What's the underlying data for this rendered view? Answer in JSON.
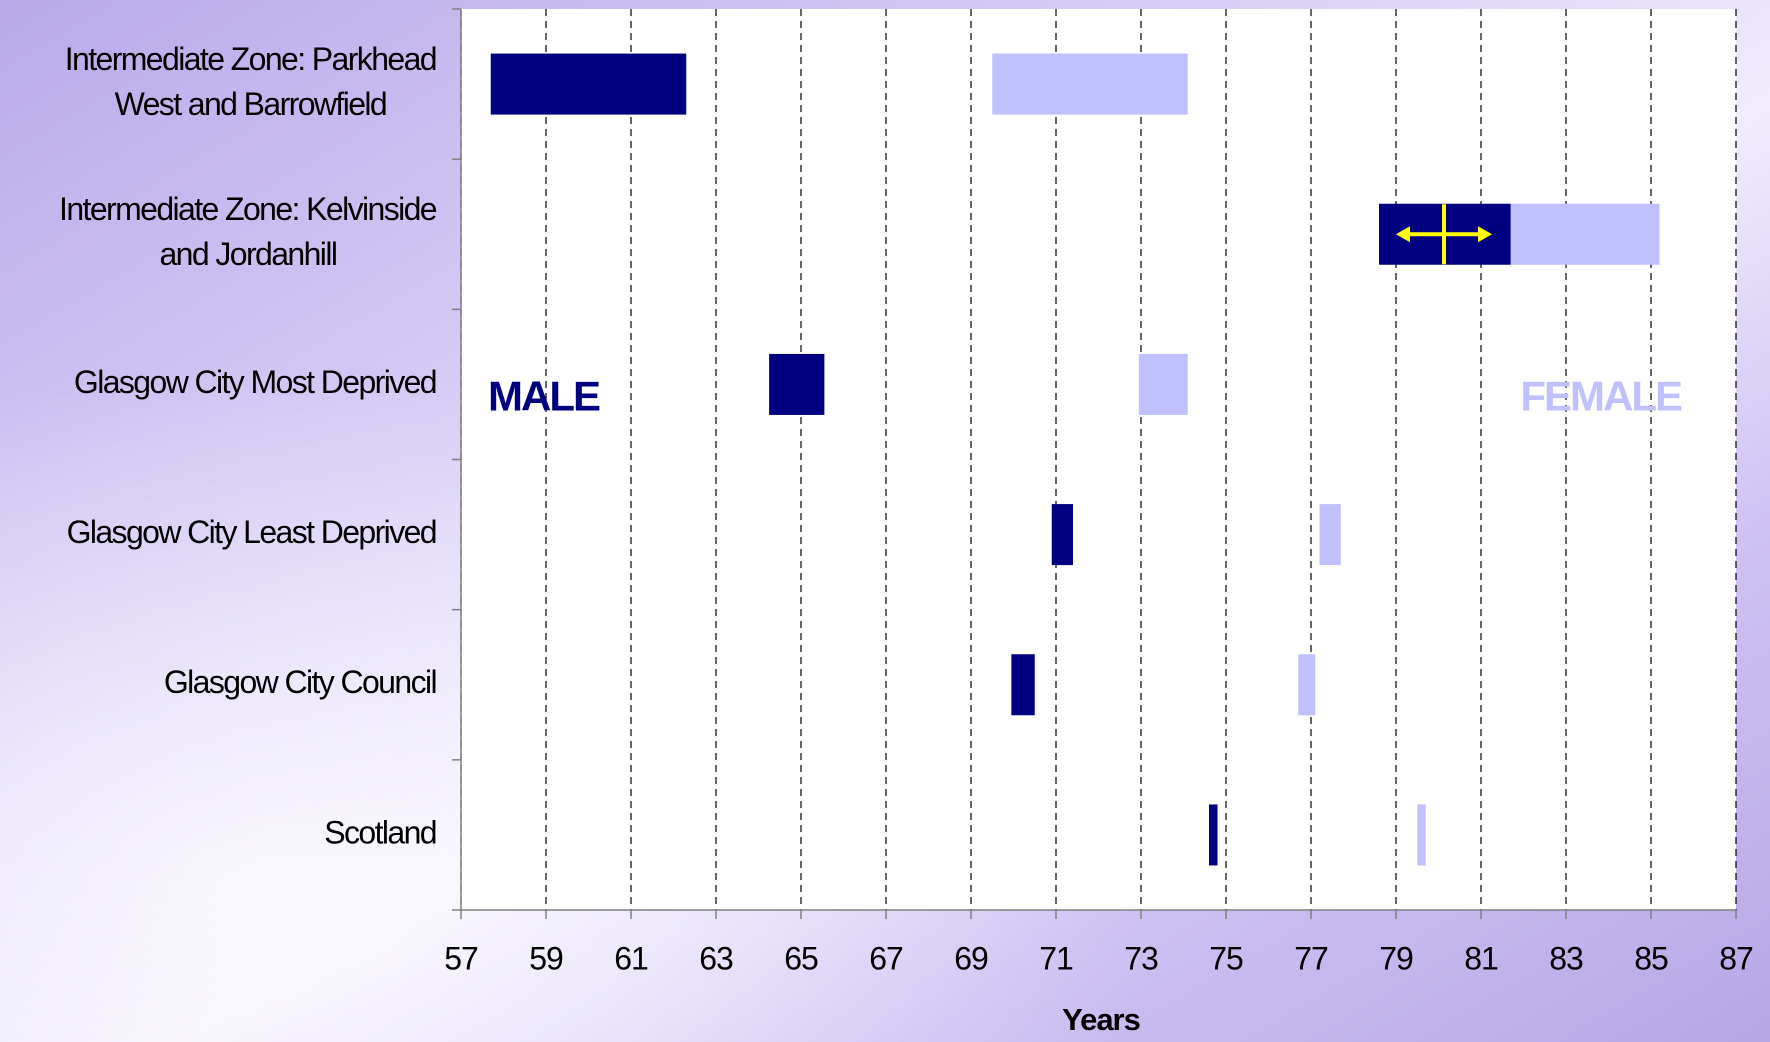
{
  "chart_data": {
    "type": "floating-bar",
    "orientation": "horizontal",
    "categories": [
      [
        "Intermediate Zone: Parkhead",
        "West and Barrowfield"
      ],
      [
        "Intermediate Zone: Kelvinside",
        "and Jordanhill"
      ],
      [
        "Glasgow City Most Deprived"
      ],
      [
        "Glasgow City Least Deprived"
      ],
      [
        "Glasgow City Council"
      ],
      [
        "Scotland"
      ]
    ],
    "series": [
      {
        "name": "MALE",
        "color": "#000080",
        "values": [
          [
            57.7,
            62.3
          ],
          [
            78.6,
            81.7
          ],
          [
            64.25,
            65.55
          ],
          [
            70.9,
            71.4
          ],
          [
            69.95,
            70.5
          ],
          [
            74.6,
            74.8
          ]
        ]
      },
      {
        "name": "FEMALE",
        "color": "#c0c0ff",
        "values": [
          [
            69.5,
            74.1
          ],
          [
            81.7,
            85.2
          ],
          [
            72.95,
            74.1
          ],
          [
            77.2,
            77.7
          ],
          [
            76.7,
            77.1
          ],
          [
            79.5,
            79.7
          ]
        ]
      }
    ],
    "xlabel": "Years",
    "xlim": [
      57,
      87
    ],
    "xticks": [
      57,
      59,
      61,
      63,
      65,
      67,
      69,
      71,
      73,
      75,
      77,
      79,
      81,
      83,
      85,
      87
    ],
    "grid": true
  }
}
